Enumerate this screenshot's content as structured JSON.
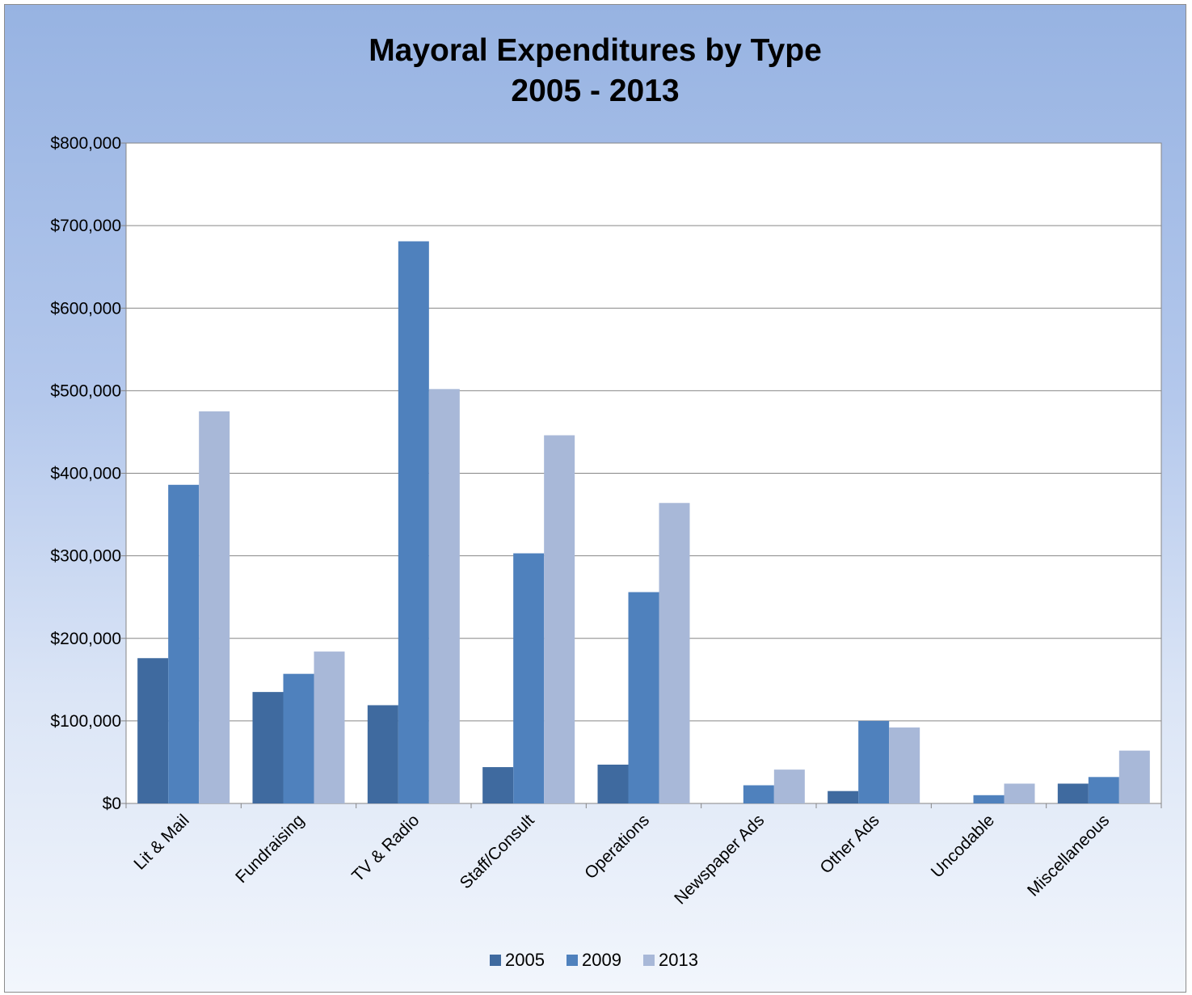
{
  "chart_data": {
    "type": "bar",
    "title_line1": "Mayoral Expenditures by Type",
    "title_line2": "2005 - 2013",
    "xlabel": "",
    "ylabel": "",
    "ylim": [
      0,
      800000
    ],
    "yticks": [
      0,
      100000,
      200000,
      300000,
      400000,
      500000,
      600000,
      700000,
      800000
    ],
    "ytick_labels": [
      "$0",
      "$100,000",
      "$200,000",
      "$300,000",
      "$400,000",
      "$500,000",
      "$600,000",
      "$700,000",
      "$800,000"
    ],
    "categories": [
      "Lit & Mail",
      "Fundraising",
      "TV & Radio",
      "Staff/Consult",
      "Operations",
      "Newspaper Ads",
      "Other Ads",
      "Uncodable",
      "Miscellaneous"
    ],
    "series": [
      {
        "name": "2005",
        "color": "#3f6a9f",
        "values": [
          176000,
          135000,
          119000,
          44000,
          47000,
          0,
          15000,
          0,
          24000
        ]
      },
      {
        "name": "2009",
        "color": "#4f81bd",
        "values": [
          386000,
          157000,
          681000,
          303000,
          256000,
          22000,
          100000,
          10000,
          32000
        ]
      },
      {
        "name": "2013",
        "color": "#a8b8d8",
        "values": [
          475000,
          184000,
          502000,
          446000,
          364000,
          41000,
          92000,
          24000,
          64000
        ]
      }
    ],
    "grid": true,
    "legend_position": "bottom"
  }
}
